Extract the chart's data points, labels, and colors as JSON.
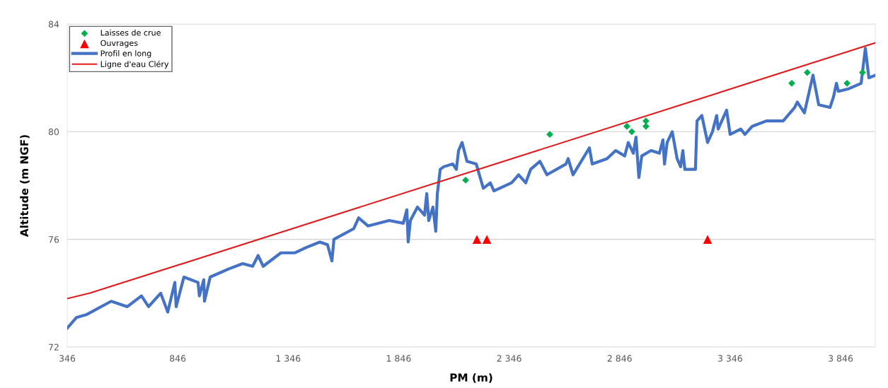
{
  "chart_data": {
    "type": "line",
    "xlabel": "PM (m)",
    "ylabel": "Altitude (m NGF)",
    "xlim": [
      346,
      4003
    ],
    "ylim": [
      72,
      84
    ],
    "xticks": [
      346,
      846,
      {
        "value": 1346,
        "label": "1 346"
      },
      {
        "value": 1846,
        "label": "1 846"
      },
      {
        "value": 2346,
        "label": "2 346"
      },
      {
        "value": 2846,
        "label": "2 846"
      },
      {
        "value": 3346,
        "label": "3 346"
      },
      {
        "value": 3846,
        "label": "3 846"
      }
    ],
    "yticks": [
      72,
      76,
      80,
      84
    ],
    "grid": "y",
    "legend": "top left",
    "series": [
      {
        "name": "Laisses de crue",
        "type": "scatter",
        "marker": "diamond",
        "color": "#00b050",
        "x": [
          2149,
          2530,
          2879,
          2901,
          2965,
          2965,
          3625,
          3695,
          3875,
          3945
        ],
        "values": [
          78.2,
          79.9,
          80.2,
          80.0,
          80.4,
          80.2,
          81.8,
          82.2,
          81.8,
          82.2
        ]
      },
      {
        "name": "Ouvrages",
        "type": "scatter",
        "marker": "triangle",
        "color": "#ff0000",
        "x": [
          2200,
          2245,
          3244
        ],
        "values": [
          76.0,
          76.0,
          76.0
        ]
      },
      {
        "name": "Profil en long",
        "marker": "none",
        "color": "#4472c4",
        "x": [
          346,
          388,
          432,
          545,
          618,
          682,
          714,
          769,
          801,
          833,
          839,
          874,
          938,
          944,
          964,
          967,
          993,
          1076,
          1140,
          1185,
          1210,
          1233,
          1313,
          1377,
          1428,
          1489,
          1524,
          1544,
          1553,
          1643,
          1665,
          1707,
          1803,
          1867,
          1883,
          1889,
          1899,
          1931,
          1963,
          1973,
          1982,
          2001,
          2014,
          2021,
          2034,
          2050,
          2091,
          2107,
          2117,
          2133,
          2155,
          2197,
          2229,
          2261,
          2277,
          2357,
          2389,
          2421,
          2443,
          2485,
          2517,
          2603,
          2613,
          2635,
          2709,
          2722,
          2789,
          2828,
          2869,
          2885,
          2908,
          2920,
          2933,
          2946,
          2988,
          3026,
          3042,
          3049,
          3061,
          3084,
          3106,
          3122,
          3132,
          3141,
          3189,
          3196,
          3218,
          3244,
          3266,
          3285,
          3292,
          3330,
          3346,
          3394,
          3413,
          3446,
          3510,
          3586,
          3638,
          3650,
          3682,
          3721,
          3747,
          3798,
          3814,
          3827,
          3836,
          3884,
          3939,
          3958,
          3974,
          4003
        ],
        "values": [
          72.7,
          73.1,
          73.2,
          73.7,
          73.5,
          73.9,
          73.5,
          74.0,
          73.3,
          74.4,
          73.5,
          74.6,
          74.4,
          73.9,
          74.5,
          73.7,
          74.6,
          74.9,
          75.1,
          75.0,
          75.4,
          75.0,
          75.5,
          75.5,
          75.7,
          75.9,
          75.8,
          75.2,
          76.0,
          76.4,
          76.8,
          76.5,
          76.7,
          76.6,
          77.1,
          75.9,
          76.7,
          77.2,
          76.9,
          77.7,
          76.7,
          77.2,
          76.3,
          77.7,
          78.6,
          78.7,
          78.8,
          78.6,
          79.3,
          79.6,
          78.9,
          78.8,
          77.9,
          78.1,
          77.8,
          78.1,
          78.4,
          78.1,
          78.6,
          78.9,
          78.4,
          78.8,
          79.0,
          78.4,
          79.4,
          78.8,
          79.0,
          79.3,
          79.1,
          79.6,
          79.2,
          79.8,
          78.3,
          79.1,
          79.3,
          79.2,
          79.7,
          78.8,
          79.6,
          80.0,
          79.0,
          78.7,
          79.3,
          78.6,
          78.6,
          80.4,
          80.6,
          79.6,
          80.0,
          80.6,
          80.1,
          80.8,
          79.9,
          80.1,
          79.9,
          80.2,
          80.4,
          80.4,
          80.9,
          81.1,
          80.7,
          82.1,
          81.0,
          80.9,
          81.3,
          81.8,
          81.5,
          81.6,
          81.8,
          83.1,
          82.0,
          82.1
        ]
      },
      {
        "name": "Ligne d'eau Cléry",
        "marker": "none",
        "color": "#e31a1c",
        "x": [
          346,
          448,
          4003
        ],
        "values": [
          73.8,
          74.0,
          83.3
        ]
      }
    ]
  }
}
